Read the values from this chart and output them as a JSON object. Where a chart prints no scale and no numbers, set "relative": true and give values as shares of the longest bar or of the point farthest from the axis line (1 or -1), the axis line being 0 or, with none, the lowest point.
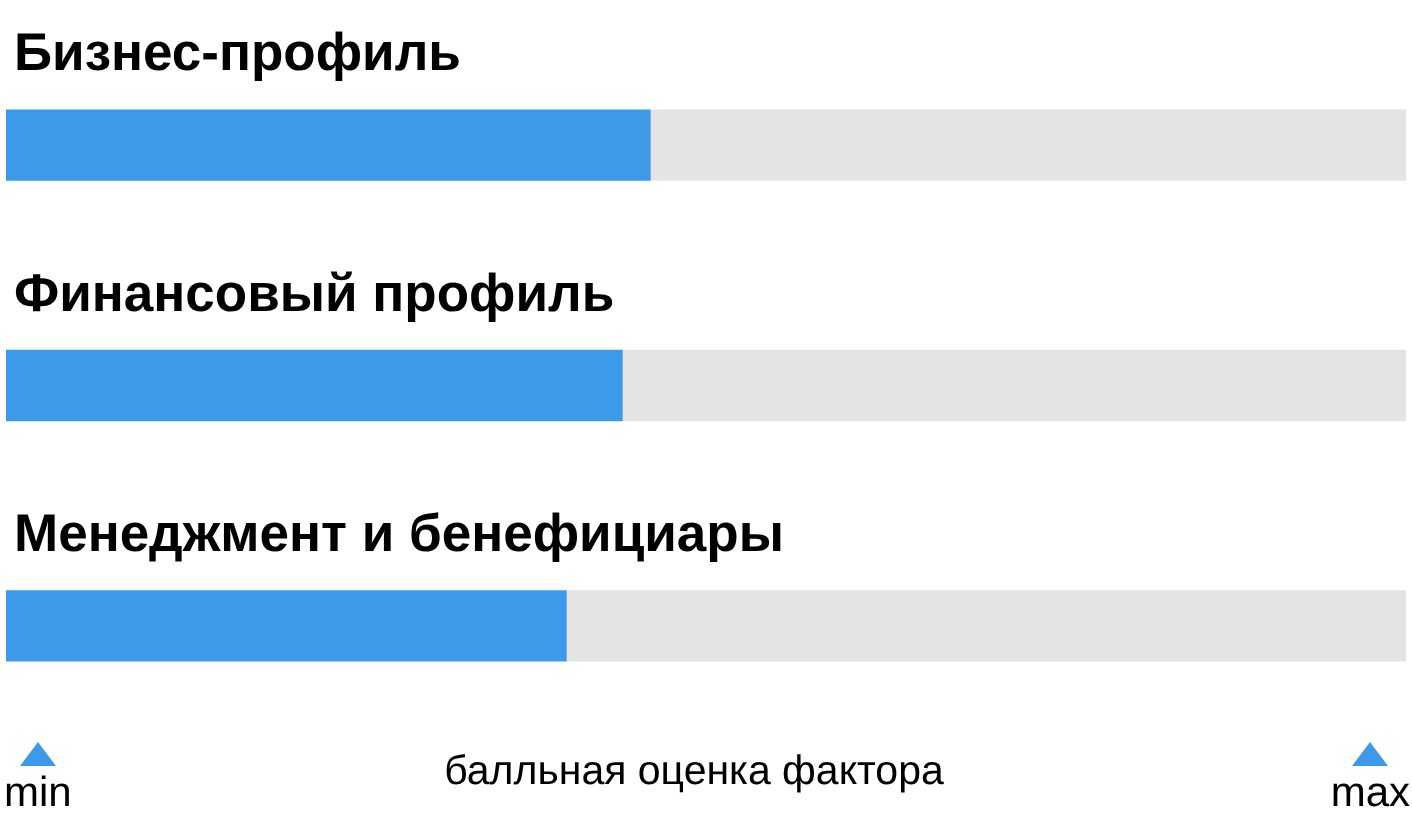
{
  "chart_data": {
    "type": "bar",
    "orientation": "horizontal",
    "stacked": true,
    "relative": true,
    "categories": [
      "Бизнес-профиль",
      "Финансовый профиль",
      "Менеджмент и бенефициары"
    ],
    "series": [
      {
        "color": "#3d9ae8",
        "values": [
          0.46,
          0.44,
          0.4
        ]
      },
      {
        "color": "#e4e4e4",
        "values": [
          0.54,
          0.56,
          0.6
        ]
      }
    ],
    "xlabel": "балльная оценка фактора",
    "annotations": [
      "min",
      "max"
    ]
  }
}
